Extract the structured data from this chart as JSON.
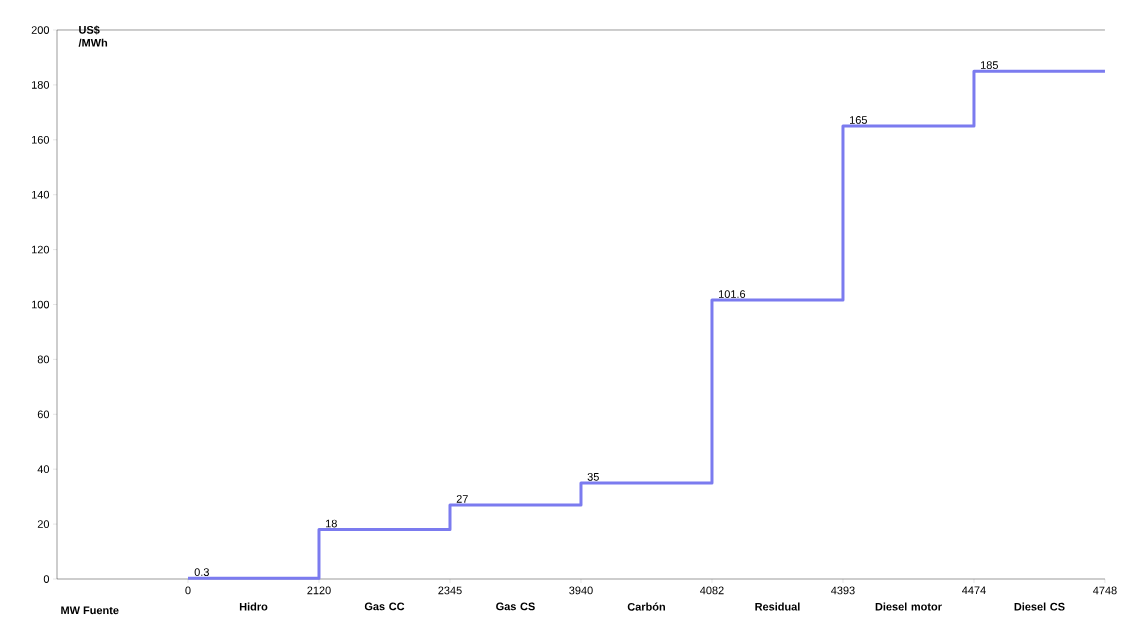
{
  "chart_data": {
    "type": "step",
    "ylabel": "US$ /MWh",
    "xlabel": "MW Fuente",
    "categories": [
      "0",
      "2120",
      "2345",
      "3940",
      "4082",
      "4393",
      "4474",
      "4748"
    ],
    "values": [
      0.3,
      18,
      27,
      35,
      101.6,
      165,
      185,
      185
    ],
    "value_labels": [
      "0.3",
      "18",
      "27",
      "35",
      "101.6",
      "165",
      "185",
      null
    ],
    "color": "#7b7bef",
    "ylim": [
      0,
      200
    ],
    "yticks": [
      0,
      20,
      40,
      60,
      80,
      100,
      120,
      140,
      160,
      180,
      200
    ],
    "annotations": [
      "Hidro",
      "Gas CC",
      "Gas CS",
      "Carbón",
      "Residual",
      "Diesel motor",
      "Diesel CS"
    ]
  }
}
